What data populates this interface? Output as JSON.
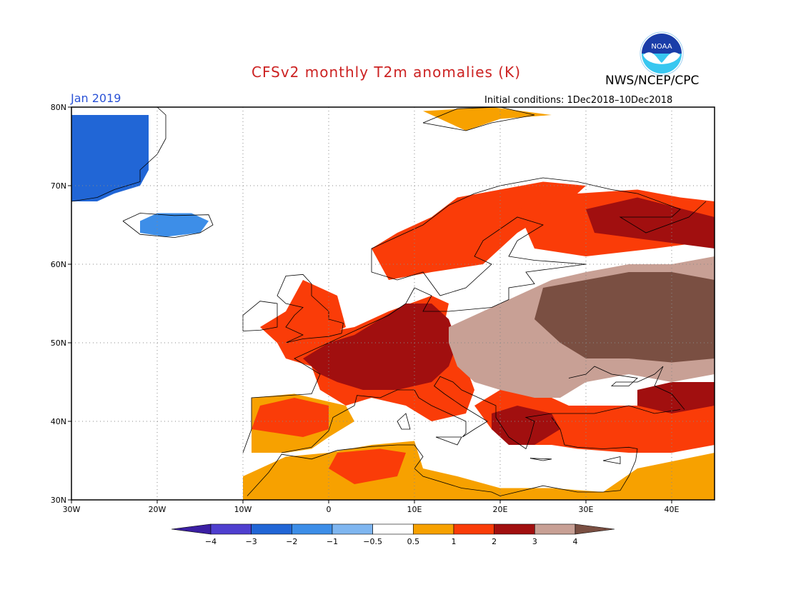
{
  "title": "CFSv2 monthly T2m anomalies (K)",
  "agency": "NWS/NCEP/CPC",
  "logo_text": "NOAA",
  "valid_month": "Jan 2019",
  "initial_conditions": "Initial conditions: 1Dec2018–10Dec2018",
  "map_extent": {
    "lon": [
      -30,
      45
    ],
    "lat": [
      30,
      80
    ]
  },
  "axes": {
    "lon_ticks": [
      {
        "value": -30,
        "label": "30W"
      },
      {
        "value": -20,
        "label": "20W"
      },
      {
        "value": -10,
        "label": "10W"
      },
      {
        "value": 0,
        "label": "0"
      },
      {
        "value": 10,
        "label": "10E"
      },
      {
        "value": 20,
        "label": "20E"
      },
      {
        "value": 30,
        "label": "30E"
      },
      {
        "value": 40,
        "label": "40E"
      }
    ],
    "lat_ticks": [
      {
        "value": 80,
        "label": "80N"
      },
      {
        "value": 70,
        "label": "70N"
      },
      {
        "value": 60,
        "label": "60N"
      },
      {
        "value": 50,
        "label": "50N"
      },
      {
        "value": 40,
        "label": "40N"
      },
      {
        "value": 30,
        "label": "30N"
      }
    ],
    "grid": true
  },
  "colorbar": {
    "bins": [
      {
        "color": "#3b1fa3"
      },
      {
        "color": "#4f3fcf"
      },
      {
        "color": "#2166d6"
      },
      {
        "color": "#3d8ee8"
      },
      {
        "color": "#7fb6f0"
      },
      {
        "color": "#ffffff"
      },
      {
        "color": "#f7a100"
      },
      {
        "color": "#fa3c08"
      },
      {
        "color": "#a10f0f"
      },
      {
        "color": "#c8a095"
      },
      {
        "color": "#7a4f42"
      }
    ],
    "labels": [
      "−4",
      "−3",
      "−2",
      "−1",
      "−0.5",
      "0.5",
      "1",
      "2",
      "3",
      "4"
    ]
  },
  "anomaly_regions": [
    {
      "name": "greenland",
      "level": -2,
      "points": [
        [
          -30,
          79
        ],
        [
          -21,
          79
        ],
        [
          -21,
          72
        ],
        [
          -22,
          70
        ],
        [
          -25,
          69
        ],
        [
          -27,
          68
        ],
        [
          -30,
          68
        ]
      ]
    },
    {
      "name": "iceland",
      "level": -1,
      "points": [
        [
          -22,
          65.5
        ],
        [
          -20,
          66.5
        ],
        [
          -16,
          66.5
        ],
        [
          -14,
          65.5
        ],
        [
          -15,
          64
        ],
        [
          -19,
          63.5
        ],
        [
          -22,
          64
        ]
      ]
    },
    {
      "name": "svalbard-and-barents",
      "level": 1,
      "points": [
        [
          11,
          79.5
        ],
        [
          19,
          80
        ],
        [
          26,
          79
        ],
        [
          20,
          78.5
        ],
        [
          16,
          77
        ]
      ]
    },
    {
      "name": "north-scandinavia",
      "level": 2,
      "points": [
        [
          5,
          62
        ],
        [
          8,
          64
        ],
        [
          12,
          66
        ],
        [
          15,
          68.5
        ],
        [
          20,
          69.5
        ],
        [
          25,
          70.5
        ],
        [
          30,
          70
        ],
        [
          28,
          68
        ],
        [
          25,
          66
        ],
        [
          22,
          64
        ],
        [
          20,
          62
        ],
        [
          18,
          60
        ],
        [
          12,
          59
        ],
        [
          7,
          58
        ]
      ]
    },
    {
      "name": "north-russia",
      "level": 2,
      "points": [
        [
          22,
          67
        ],
        [
          29,
          69
        ],
        [
          36,
          69.5
        ],
        [
          41,
          68.5
        ],
        [
          45,
          68
        ],
        [
          45,
          63
        ],
        [
          38,
          62
        ],
        [
          30,
          61
        ],
        [
          24,
          62
        ]
      ]
    },
    {
      "name": "kola-warm",
      "level": 3,
      "points": [
        [
          30,
          67
        ],
        [
          36,
          68.5
        ],
        [
          45,
          66
        ],
        [
          45,
          62
        ],
        [
          38,
          63
        ],
        [
          31,
          64
        ]
      ]
    },
    {
      "name": "west-europe",
      "level": 2,
      "points": [
        [
          -6,
          50
        ],
        [
          -2,
          51
        ],
        [
          3,
          52
        ],
        [
          7,
          54
        ],
        [
          12,
          56
        ],
        [
          14,
          55
        ],
        [
          13,
          50
        ],
        [
          16,
          47
        ],
        [
          17,
          44
        ],
        [
          16,
          41
        ],
        [
          12,
          40
        ],
        [
          9,
          42
        ],
        [
          5,
          43
        ],
        [
          2,
          42
        ],
        [
          -1,
          44
        ],
        [
          -2,
          47
        ],
        [
          -5,
          48
        ]
      ]
    },
    {
      "name": "france-germany",
      "level": 3,
      "points": [
        [
          -3,
          48
        ],
        [
          0,
          50
        ],
        [
          3,
          51
        ],
        [
          6,
          53
        ],
        [
          9,
          55
        ],
        [
          12,
          55
        ],
        [
          14,
          53
        ],
        [
          15,
          50
        ],
        [
          14,
          47
        ],
        [
          12,
          45
        ],
        [
          8,
          44
        ],
        [
          4,
          44
        ],
        [
          1,
          45
        ],
        [
          -1,
          46
        ]
      ]
    },
    {
      "name": "britain",
      "level": 2,
      "points": [
        [
          -8,
          52
        ],
        [
          -5,
          54
        ],
        [
          -3,
          58
        ],
        [
          1,
          56
        ],
        [
          2,
          52
        ],
        [
          -2,
          50
        ],
        [
          -6,
          50
        ]
      ]
    },
    {
      "name": "iberia",
      "level": 1,
      "points": [
        [
          -9,
          36
        ],
        [
          -9,
          43
        ],
        [
          -4,
          43.5
        ],
        [
          2,
          42
        ],
        [
          3,
          40
        ],
        [
          0,
          38
        ],
        [
          -2,
          36.5
        ],
        [
          -5,
          36
        ]
      ]
    },
    {
      "name": "iberia-warm",
      "level": 2,
      "points": [
        [
          -9,
          39
        ],
        [
          -8,
          42
        ],
        [
          -4,
          43
        ],
        [
          0,
          42
        ],
        [
          0,
          39
        ],
        [
          -3,
          38
        ]
      ]
    },
    {
      "name": "north-africa",
      "level": 1,
      "points": [
        [
          -10,
          30
        ],
        [
          -10,
          33
        ],
        [
          -5,
          35.5
        ],
        [
          0,
          36
        ],
        [
          5,
          37
        ],
        [
          10,
          37.5
        ],
        [
          11,
          34
        ],
        [
          15,
          33
        ],
        [
          20,
          31.5
        ],
        [
          26,
          31.5
        ],
        [
          32,
          31
        ],
        [
          36,
          34
        ],
        [
          45,
          36
        ],
        [
          45,
          30
        ]
      ]
    },
    {
      "name": "algeria-warm",
      "level": 2,
      "points": [
        [
          0,
          34
        ],
        [
          1,
          36
        ],
        [
          6,
          36.5
        ],
        [
          9,
          36
        ],
        [
          8,
          33
        ],
        [
          3,
          32
        ]
      ]
    },
    {
      "name": "balkans-turkey",
      "level": 2,
      "points": [
        [
          17,
          42
        ],
        [
          20,
          44
        ],
        [
          24,
          44
        ],
        [
          28,
          42
        ],
        [
          32,
          42
        ],
        [
          36,
          42
        ],
        [
          40,
          41.5
        ],
        [
          45,
          42
        ],
        [
          45,
          37
        ],
        [
          40,
          36
        ],
        [
          35,
          36
        ],
        [
          29,
          36.5
        ],
        [
          26,
          37
        ],
        [
          22,
          37
        ],
        [
          19,
          39
        ]
      ]
    },
    {
      "name": "greece-warm",
      "level": 3,
      "points": [
        [
          19,
          41
        ],
        [
          22,
          42
        ],
        [
          26,
          41
        ],
        [
          27,
          39
        ],
        [
          24,
          37
        ],
        [
          21,
          37
        ],
        [
          19,
          39
        ]
      ]
    },
    {
      "name": "central-east-europe",
      "level": 4,
      "points": [
        [
          14,
          52
        ],
        [
          18,
          54
        ],
        [
          22,
          56
        ],
        [
          26,
          58
        ],
        [
          30,
          59
        ],
        [
          35,
          60
        ],
        [
          40,
          60
        ],
        [
          45,
          61
        ],
        [
          45,
          46
        ],
        [
          40,
          45
        ],
        [
          35,
          46
        ],
        [
          30,
          45
        ],
        [
          27,
          43
        ],
        [
          24,
          43
        ],
        [
          20,
          44
        ],
        [
          17,
          45
        ],
        [
          15,
          47
        ],
        [
          14,
          50
        ]
      ]
    },
    {
      "name": "russia-core",
      "level": 5,
      "points": [
        [
          25,
          57
        ],
        [
          30,
          58
        ],
        [
          35,
          59
        ],
        [
          40,
          59
        ],
        [
          45,
          58
        ],
        [
          45,
          48
        ],
        [
          40,
          47.5
        ],
        [
          35,
          48
        ],
        [
          30,
          48
        ],
        [
          27,
          50
        ],
        [
          24,
          53
        ]
      ]
    },
    {
      "name": "caucasus-warm",
      "level": 3,
      "points": [
        [
          36,
          44
        ],
        [
          40,
          45
        ],
        [
          45,
          45
        ],
        [
          45,
          42
        ],
        [
          40,
          41
        ],
        [
          36,
          42
        ]
      ]
    }
  ]
}
